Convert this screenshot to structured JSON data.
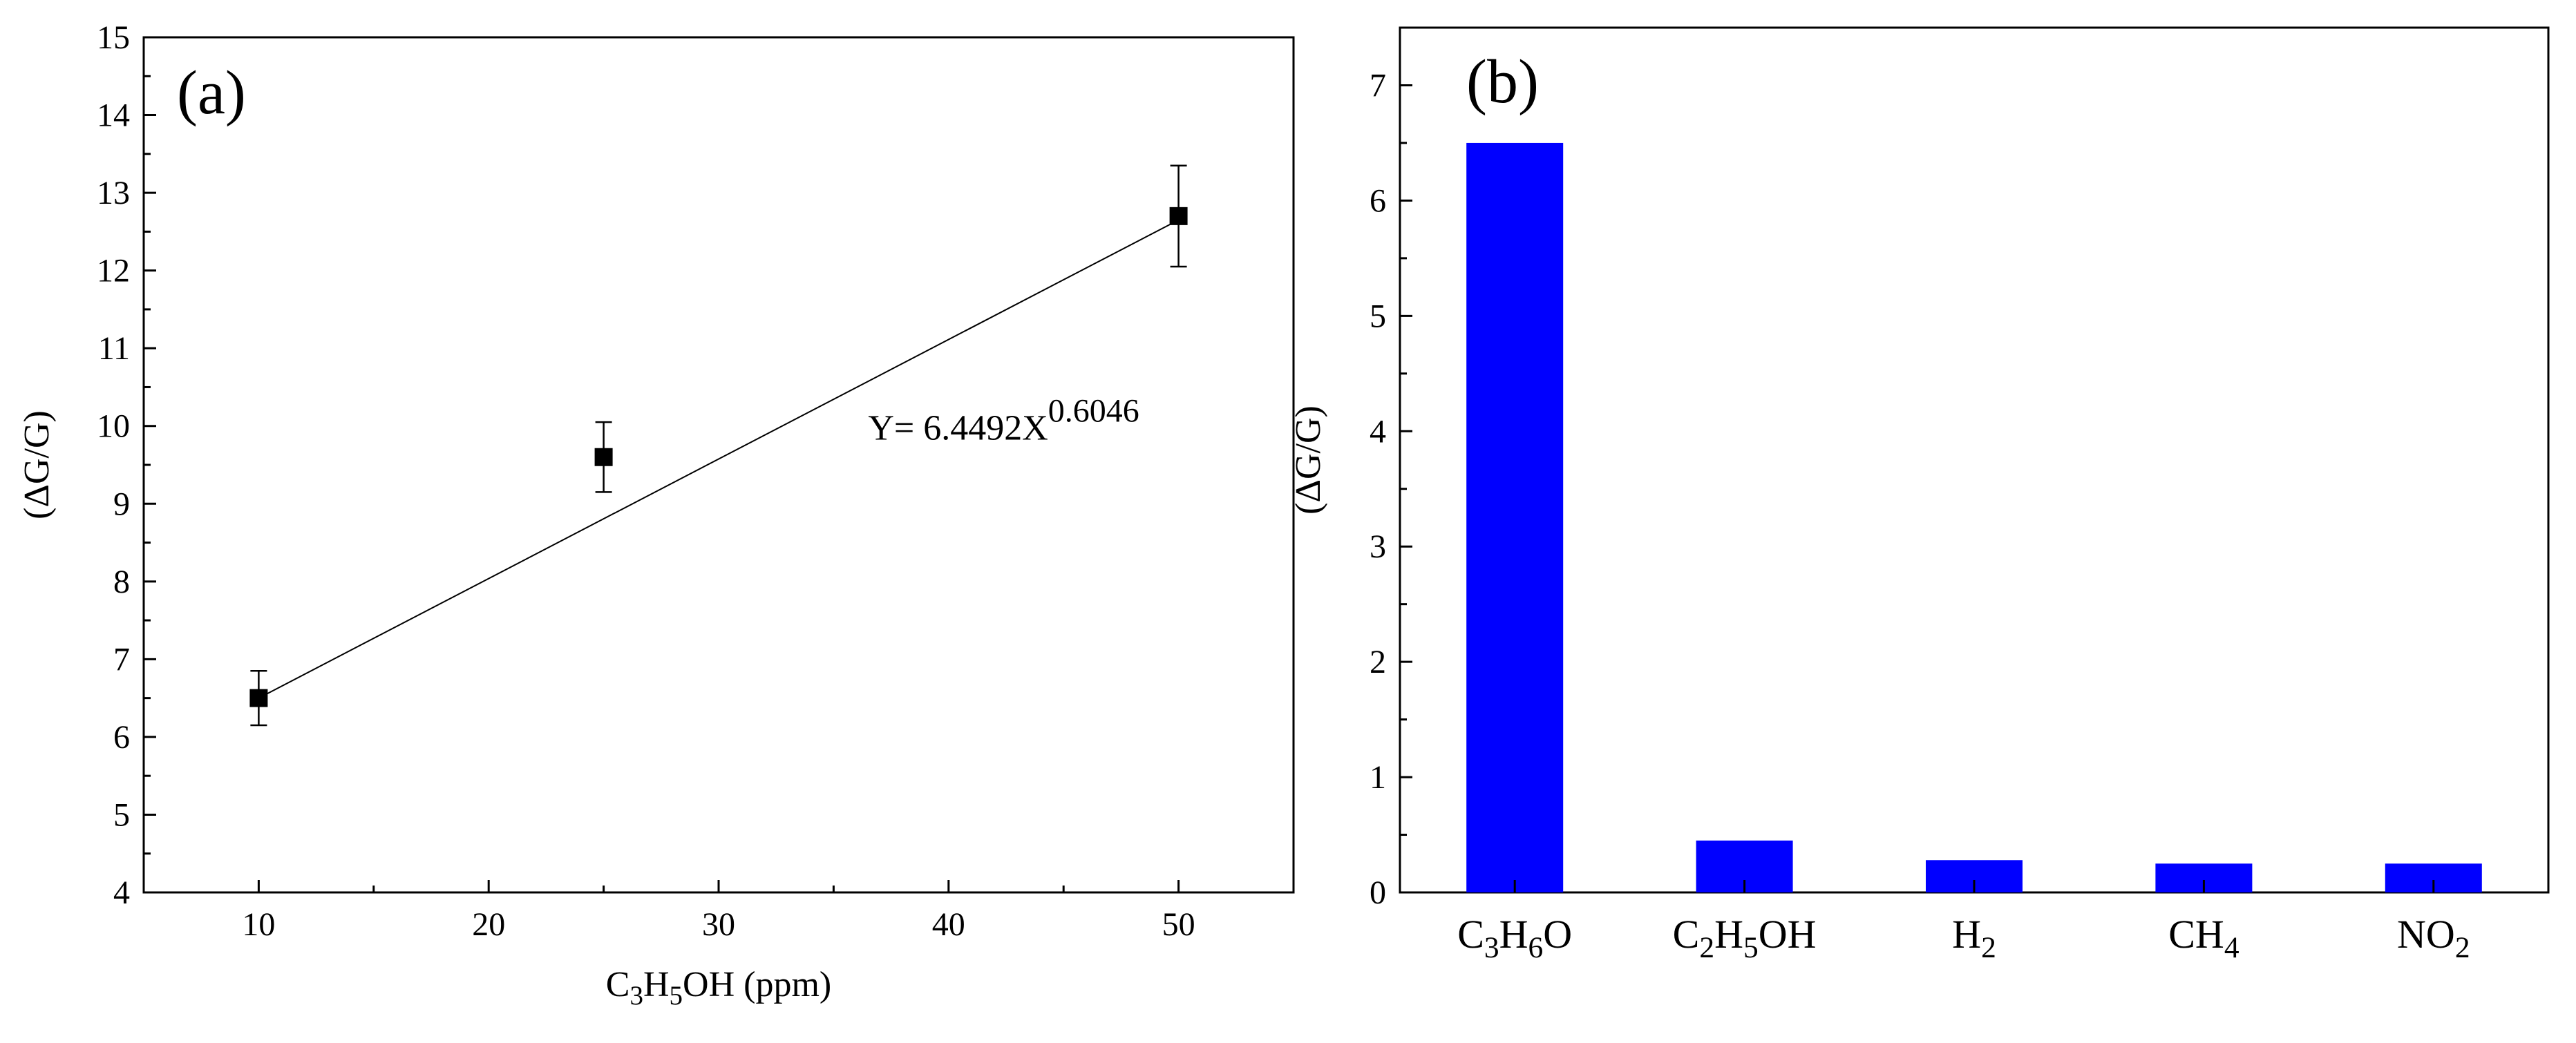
{
  "chart_data": [
    {
      "type": "scatter",
      "panel_label": "(a)",
      "xlabel_parts": [
        "C",
        "3",
        "H",
        "5",
        "OH (ppm)"
      ],
      "ylabel": "(ΔG/G)",
      "xlim": [
        5,
        55
      ],
      "ylim": [
        4,
        15
      ],
      "xticks": [
        10,
        20,
        30,
        40,
        50
      ],
      "yticks": [
        4,
        5,
        6,
        7,
        8,
        9,
        10,
        11,
        12,
        13,
        14,
        15
      ],
      "series": [
        {
          "name": "response",
          "x": [
            10,
            25,
            50
          ],
          "y": [
            6.5,
            9.6,
            12.7
          ],
          "yerr_low": [
            6.15,
            9.15,
            12.05
          ],
          "yerr_high": [
            6.85,
            10.05,
            13.35
          ]
        }
      ],
      "fit_line": {
        "x": [
          10,
          50
        ],
        "y": [
          6.5,
          12.65
        ]
      },
      "annotation": {
        "base": "Y= 6.4492X",
        "exponent": "0.6046",
        "at_x": 36.5,
        "at_y": 10.0
      }
    },
    {
      "type": "bar",
      "panel_label": "(b)",
      "ylabel": "(ΔG/G)",
      "ylim": [
        0,
        7.5
      ],
      "yticks": [
        0,
        1,
        2,
        3,
        4,
        5,
        6,
        7
      ],
      "bar_color": "#0000ff",
      "categories": [
        {
          "parts": [
            "C",
            "3",
            "H",
            "6",
            "O"
          ]
        },
        {
          "parts": [
            "C",
            "2",
            "H",
            "5",
            "OH"
          ]
        },
        {
          "parts": [
            "H",
            "2"
          ]
        },
        {
          "parts": [
            "CH",
            "4"
          ]
        },
        {
          "parts": [
            "NO",
            "2"
          ]
        }
      ],
      "values": [
        6.5,
        0.45,
        0.28,
        0.25,
        0.25
      ]
    }
  ]
}
